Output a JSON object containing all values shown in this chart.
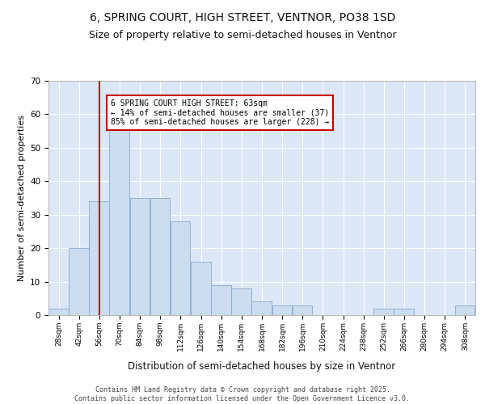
{
  "title1": "6, SPRING COURT, HIGH STREET, VENTNOR, PO38 1SD",
  "title2": "Size of property relative to semi-detached houses in Ventnor",
  "xlabel": "Distribution of semi-detached houses by size in Ventnor",
  "ylabel": "Number of semi-detached properties",
  "bar_color": "#ccddf0",
  "bar_edge_color": "#88aacc",
  "background_color": "#dce8f8",
  "grid_color": "#ffffff",
  "bins": [
    28,
    42,
    56,
    70,
    84,
    98,
    112,
    126,
    140,
    154,
    168,
    182,
    196,
    210,
    224,
    238,
    252,
    266,
    280,
    294,
    308
  ],
  "values": [
    2,
    20,
    34,
    57,
    35,
    35,
    28,
    16,
    9,
    8,
    4,
    3,
    3,
    0,
    0,
    0,
    2,
    2,
    0,
    0,
    3
  ],
  "property_sqm": 63,
  "vline_color": "#cc0000",
  "annotation_text": "6 SPRING COURT HIGH STREET: 63sqm\n← 14% of semi-detached houses are smaller (37)\n85% of semi-detached houses are larger (228) →",
  "annotation_box_color": "#ffffff",
  "annotation_border_color": "#cc0000",
  "ylim": [
    0,
    70
  ],
  "yticks": [
    0,
    10,
    20,
    30,
    40,
    50,
    60,
    70
  ],
  "footer": "Contains HM Land Registry data © Crown copyright and database right 2025.\nContains public sector information licensed under the Open Government Licence v3.0.",
  "title1_fontsize": 10,
  "title2_fontsize": 9,
  "xlabel_fontsize": 8.5,
  "ylabel_fontsize": 8
}
